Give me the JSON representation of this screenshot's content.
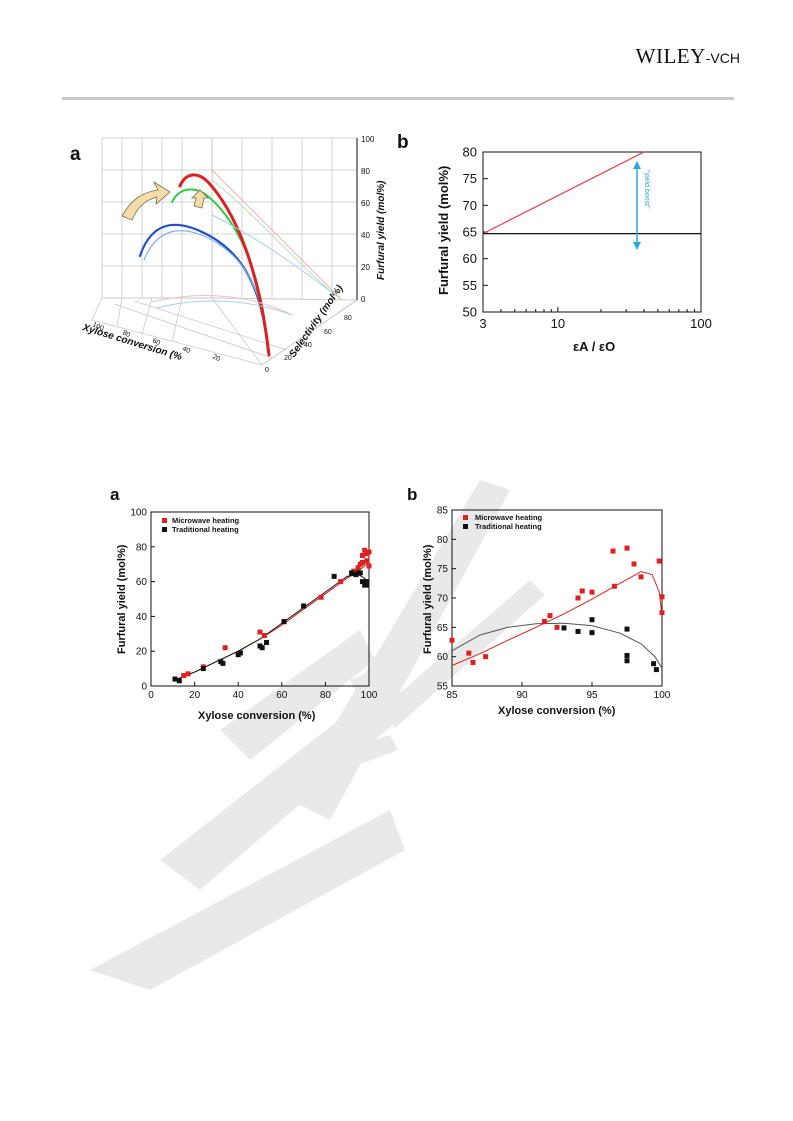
{
  "header": {
    "publisher_big": "WILEY",
    "publisher_small": "-VCH"
  },
  "figure1": {
    "panel_a": {
      "label": "a",
      "x_axis_label": "Xylose conversion (%",
      "y_axis_label": "Selectivity (mol%)",
      "z_axis_label": "Furfural yield (mol%)",
      "z_ticks": [
        "100",
        "80",
        "60",
        "40",
        "20",
        "0"
      ],
      "x_ticks": [
        "100",
        "80",
        "60",
        "40",
        "20"
      ],
      "y_ticks": [
        "0",
        "20",
        "40",
        "60",
        "80"
      ]
    },
    "panel_b": {
      "label": "b",
      "ylabel": "Furfural yield (mol%)",
      "xlabel": "εA / εO",
      "annotation": "\"yield boost\"",
      "colors": {
        "red_line": "#e8414b",
        "black_line": "#111111",
        "arrow": "#2aa8e0"
      },
      "chart_data": {
        "type": "line",
        "x_scale": "log",
        "xlim": [
          3,
          100
        ],
        "ylim": [
          50,
          80
        ],
        "x_ticks": [
          "3",
          "10",
          "100"
        ],
        "y_ticks": [
          "80",
          "75",
          "70",
          "65",
          "60",
          "55",
          "50"
        ],
        "series": [
          {
            "color": "#e8414b",
            "x": [
              3,
              40
            ],
            "y": [
              64.7,
              80
            ]
          },
          {
            "color": "#111111",
            "x": [
              3,
              100
            ],
            "y": [
              64.7,
              64.7
            ]
          }
        ]
      }
    }
  },
  "figure2": {
    "panel_a": {
      "label": "a",
      "xlabel": "Xylose conversion (%)",
      "ylabel": "Furfural yield (mol%)",
      "legend": [
        "Microwave heating",
        "Traditional heating"
      ],
      "chart_data": {
        "type": "scatter",
        "xlim": [
          0,
          100
        ],
        "ylim": [
          0,
          100
        ],
        "x_ticks": [
          "0",
          "20",
          "40",
          "60",
          "80",
          "100"
        ],
        "y_ticks": [
          "100",
          "80",
          "60",
          "40",
          "20",
          "0"
        ],
        "legend_position": "top-left",
        "series": [
          {
            "name": "Microwave heating",
            "color": "#e02020",
            "points": [
              [
                15,
                6
              ],
              [
                17,
                7
              ],
              [
                24,
                11
              ],
              [
                34,
                22
              ],
              [
                50,
                31
              ],
              [
                52,
                29
              ],
              [
                61,
                37
              ],
              [
                78,
                51
              ],
              [
                87,
                60
              ],
              [
                93,
                66
              ],
              [
                94,
                65
              ],
              [
                95,
                68
              ],
              [
                96,
                70
              ],
              [
                97,
                71
              ],
              [
                97,
                75
              ],
              [
                98,
                78
              ],
              [
                99,
                72
              ],
              [
                99,
                76
              ],
              [
                100,
                69
              ],
              [
                100,
                77
              ]
            ]
          },
          {
            "name": "Traditional heating",
            "color": "#111111",
            "points": [
              [
                11,
                4
              ],
              [
                13,
                3
              ],
              [
                24,
                10
              ],
              [
                32,
                14
              ],
              [
                33,
                13
              ],
              [
                40,
                18
              ],
              [
                41,
                19
              ],
              [
                50,
                23
              ],
              [
                51,
                22
              ],
              [
                53,
                25
              ],
              [
                61,
                37
              ],
              [
                70,
                46
              ],
              [
                84,
                63
              ],
              [
                92,
                65
              ],
              [
                94,
                64
              ],
              [
                95,
                65
              ],
              [
                96,
                65
              ],
              [
                97,
                60
              ],
              [
                98,
                58
              ],
              [
                99,
                58
              ],
              [
                99,
                60
              ]
            ]
          }
        ],
        "fit_curves": [
          {
            "color": "#e02020",
            "x": [
              10,
              20,
              30,
              40,
              50,
              60,
              70,
              80,
              90,
              95,
              98,
              100
            ],
            "y": [
              3,
              8,
              14,
              20,
              27,
              35,
              44,
              53,
              62,
              66,
              69,
              72
            ]
          },
          {
            "color": "#111111",
            "x": [
              10,
              20,
              30,
              40,
              50,
              60,
              70,
              80,
              90,
              95,
              98,
              100
            ],
            "y": [
              3,
              8,
              14,
              20,
              27,
              36,
              45,
              54,
              63,
              64,
              62,
              58
            ]
          }
        ]
      }
    },
    "panel_b": {
      "label": "b",
      "xlabel": "Xylose conversion (%)",
      "ylabel": "Furfural yield (mol%)",
      "legend": [
        "Microwave heating",
        "Traditional heating"
      ],
      "chart_data": {
        "type": "scatter",
        "xlim": [
          85,
          100
        ],
        "ylim": [
          55,
          85
        ],
        "x_ticks": [
          "85",
          "90",
          "95",
          "100"
        ],
        "y_ticks": [
          "85",
          "80",
          "75",
          "70",
          "65",
          "60",
          "55"
        ],
        "legend_position": "top-left",
        "series": [
          {
            "name": "Microwave heating",
            "color": "#e02020",
            "points": [
              [
                85,
                62.8
              ],
              [
                86.2,
                60.6
              ],
              [
                86.5,
                59
              ],
              [
                87.4,
                60
              ],
              [
                91.6,
                66
              ],
              [
                92,
                67
              ],
              [
                92.5,
                65
              ],
              [
                94,
                70
              ],
              [
                94.3,
                71.2
              ],
              [
                95,
                71
              ],
              [
                96.5,
                78
              ],
              [
                96.6,
                72
              ],
              [
                97.5,
                78.5
              ],
              [
                98,
                75.8
              ],
              [
                98.5,
                73.6
              ],
              [
                99.8,
                76.3
              ],
              [
                100,
                70.2
              ],
              [
                100,
                67.5
              ]
            ]
          },
          {
            "name": "Traditional heating",
            "color": "#111111",
            "points": [
              [
                93,
                64.9
              ],
              [
                94,
                64.3
              ],
              [
                95,
                66.3
              ],
              [
                95,
                64.1
              ],
              [
                97.5,
                64.7
              ],
              [
                97.5,
                60.2
              ],
              [
                97.5,
                59.3
              ],
              [
                99.4,
                58.8
              ],
              [
                99.6,
                57.8
              ]
            ]
          }
        ],
        "fit_curves": [
          {
            "color": "#e02020",
            "x": [
              85,
              87,
              89,
              91,
              93,
              95,
              97,
              98.5,
              99.3,
              99.8,
              100
            ],
            "y": [
              58.5,
              60.5,
              62.8,
              65,
              67.3,
              69.8,
              72.5,
              74.5,
              74,
              71,
              67
            ]
          },
          {
            "color": "#555555",
            "x": [
              85,
              87,
              89,
              91,
              93,
              95,
              97,
              98.5,
              99.5,
              100
            ],
            "y": [
              61,
              63.7,
              65,
              65.6,
              65.7,
              65.3,
              64,
              62.2,
              60,
              58
            ]
          }
        ]
      }
    }
  }
}
